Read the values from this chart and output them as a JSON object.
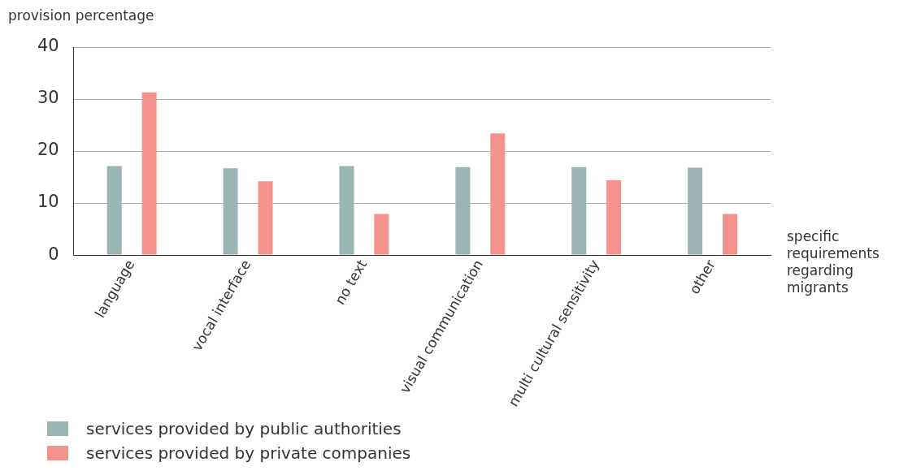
{
  "chart_data": {
    "type": "bar",
    "ylabel": "provision percentage",
    "xlabel": "specific requirements regarding migrants",
    "categories": [
      "language",
      "vocal interface",
      "no text",
      "visual communication",
      "multi cultural sensitivity",
      "other"
    ],
    "series": [
      {
        "name": "services provided by public authorities",
        "color": "#9bb4b4",
        "values": [
          17.1,
          16.7,
          17.1,
          16.9,
          16.9,
          16.8
        ]
      },
      {
        "name": "services provided by private companies",
        "color": "#f4938b",
        "values": [
          31.3,
          14.2,
          7.9,
          23.4,
          14.4,
          7.9
        ]
      }
    ],
    "ylim": [
      0,
      40
    ],
    "yticks": [
      0,
      10,
      20,
      30,
      40
    ],
    "grid": "y",
    "legend": "bottom left"
  }
}
